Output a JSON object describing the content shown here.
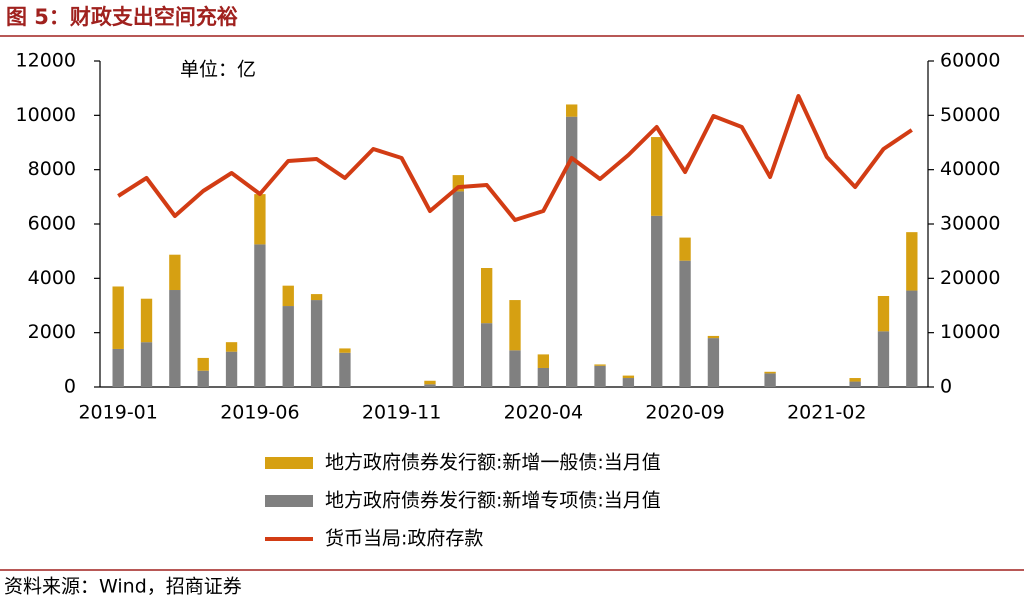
{
  "chart_data": {
    "type": "bar-line",
    "title": "图 5：财政支出空间充裕",
    "unit_note": "单位：亿",
    "source": "资料来源：Wind，招商证券",
    "categories": [
      "2019-01",
      null,
      null,
      null,
      null,
      "2019-06",
      null,
      null,
      null,
      null,
      "2019-11",
      null,
      null,
      null,
      null,
      "2020-04",
      null,
      null,
      null,
      null,
      "2020-09",
      null,
      null,
      null,
      null,
      "2021-02",
      null,
      null,
      null
    ],
    "series": [
      {
        "name": "地方政府债券发行额:新增一般债:当月值",
        "color": "#d6a012",
        "kind": "bar",
        "axis": "y",
        "values": [
          2300,
          1600,
          1300,
          470,
          350,
          1850,
          750,
          220,
          160,
          0,
          0,
          130,
          600,
          2030,
          1850,
          500,
          450,
          50,
          90,
          2900,
          850,
          80,
          0,
          60,
          0,
          0,
          130,
          1300,
          2150
        ]
      },
      {
        "name": "地方政府债券发行额:新增专项债:当月值",
        "color": "#808080",
        "kind": "bar",
        "axis": "y",
        "values": [
          1400,
          1650,
          3570,
          600,
          1300,
          5250,
          2980,
          3200,
          1260,
          0,
          0,
          100,
          7200,
          2350,
          1350,
          700,
          9950,
          780,
          330,
          6300,
          4650,
          1800,
          0,
          500,
          0,
          0,
          200,
          2050,
          3550
        ]
      },
      {
        "name": "货币当局:政府存款",
        "color": "#d23c14",
        "kind": "line",
        "axis": "y2",
        "values": [
          35150,
          38470,
          31470,
          36070,
          39390,
          35520,
          41600,
          41960,
          38470,
          43800,
          42150,
          32400,
          36800,
          37180,
          30740,
          32400,
          42150,
          38280,
          42700,
          47850,
          39570,
          49880,
          47850,
          38650,
          53560,
          42330,
          36810,
          43800,
          47300
        ]
      }
    ],
    "ylim": [
      0,
      12000
    ],
    "yticks": [
      0,
      2000,
      4000,
      6000,
      8000,
      10000,
      12000
    ],
    "y2lim": [
      0,
      60000
    ],
    "y2ticks": [
      0,
      10000,
      20000,
      30000,
      40000,
      50000,
      60000
    ],
    "grid": false
  }
}
